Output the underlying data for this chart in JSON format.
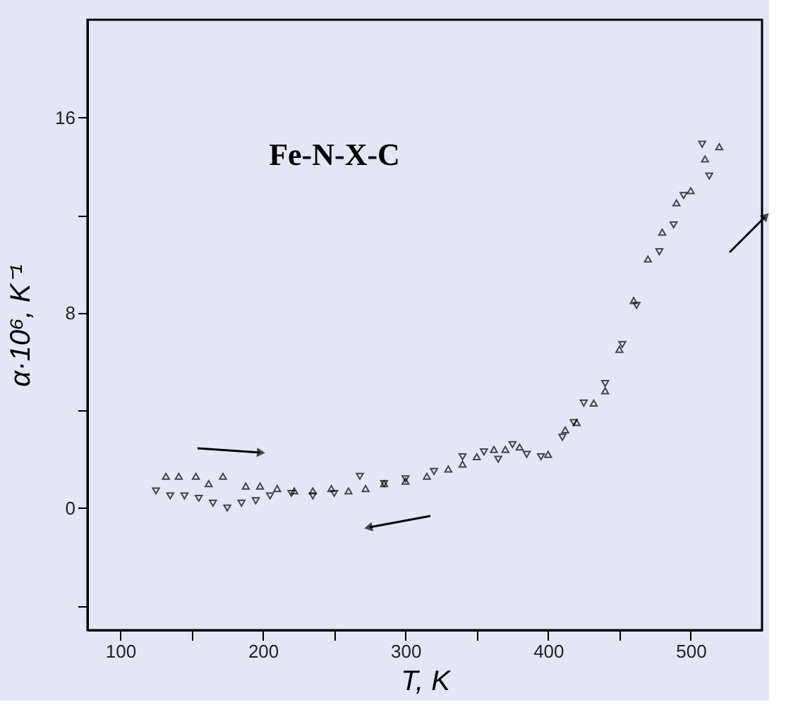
{
  "chart_data": {
    "type": "scatter",
    "xlabel": "T, K",
    "ylabel": "α·10⁶, K⁻¹",
    "annotations": [
      "Fe-N-X-C"
    ],
    "xlim": [
      77,
      550
    ],
    "xticks": [
      100,
      {
        "value": 150,
        "label": null
      },
      200,
      {
        "value": 250,
        "label": null
      },
      300,
      {
        "value": 350,
        "label": null
      },
      400,
      {
        "value": 450,
        "label": null
      },
      500
    ],
    "ylim": [
      -5,
      20
    ],
    "yticks": [
      {
        "value": -4,
        "label": null
      },
      0,
      {
        "value": 4,
        "label": null
      },
      8,
      {
        "value": 12,
        "label": null
      },
      16
    ],
    "grid": false,
    "marker": "triangle",
    "series": [
      {
        "color": "#000000",
        "x": [
          132,
          141,
          153,
          162,
          172,
          188,
          198,
          210,
          222,
          235,
          248,
          260,
          272,
          285,
          300,
          315,
          330,
          340,
          350,
          362,
          370,
          380,
          400,
          412,
          420,
          432,
          440,
          450,
          460,
          470,
          480,
          490,
          500,
          510,
          520
        ],
        "values": [
          1.3,
          1.3,
          1.3,
          1.0,
          1.3,
          0.9,
          0.9,
          0.8,
          0.7,
          0.7,
          0.8,
          0.7,
          0.8,
          1.0,
          1.1,
          1.3,
          1.6,
          1.8,
          2.1,
          2.4,
          2.4,
          2.5,
          2.2,
          3.2,
          3.5,
          4.3,
          4.8,
          6.5,
          8.5,
          10.2,
          11.3,
          12.5,
          13.0,
          14.3,
          14.8
        ]
      },
      {
        "color": "#000000",
        "x": [
          125,
          135,
          145,
          155,
          165,
          175,
          185,
          195,
          205,
          220,
          235,
          250,
          268,
          285,
          300,
          320,
          340,
          355,
          365,
          375,
          385,
          395,
          410,
          418,
          425,
          440,
          452,
          462,
          478,
          488,
          495,
          508,
          513
        ],
        "values": [
          0.7,
          0.5,
          0.5,
          0.4,
          0.2,
          0.0,
          0.2,
          0.3,
          0.5,
          0.6,
          0.5,
          0.6,
          1.3,
          1.0,
          1.2,
          1.5,
          2.1,
          2.3,
          2.0,
          2.6,
          2.2,
          2.1,
          2.9,
          3.5,
          4.3,
          5.1,
          6.7,
          8.3,
          10.5,
          11.6,
          12.8,
          14.9,
          13.6
        ]
      }
    ]
  }
}
